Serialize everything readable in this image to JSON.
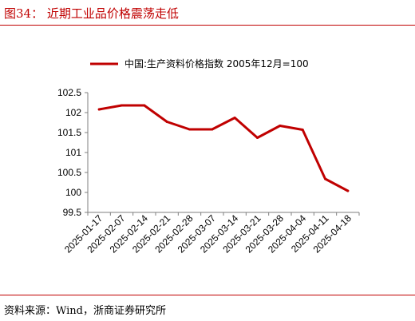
{
  "header": {
    "figure_label": "图34：",
    "figure_title": "近期工业品价格震荡走低"
  },
  "footer": {
    "source": "资料来源：Wind，浙商证券研究所"
  },
  "colors": {
    "accent": "#c00000",
    "series_line": "#c00000",
    "axis": "#7f7f7f"
  },
  "chart_data": {
    "type": "line",
    "title": "",
    "xlabel": "",
    "ylabel": "",
    "x": [
      "2025-01-17",
      "2025-02-07",
      "2025-02-14",
      "2025-02-21",
      "2025-02-28",
      "2025-03-07",
      "2025-03-14",
      "2025-03-21",
      "2025-03-28",
      "2025-04-04",
      "2025-04-11",
      "2025-04-18"
    ],
    "series": [
      {
        "name": "中国:生产资料价格指数 2005年12月=100",
        "values": [
          102.08,
          102.18,
          102.18,
          101.77,
          101.58,
          101.58,
          101.87,
          101.37,
          101.67,
          101.57,
          100.34,
          100.04
        ]
      }
    ],
    "ylim": [
      99.5,
      102.5
    ],
    "yticks": [
      "99.5",
      "100",
      "100.5",
      "101",
      "101.5",
      "102",
      "102.5"
    ],
    "grid": false,
    "legend_position": "top-center"
  }
}
